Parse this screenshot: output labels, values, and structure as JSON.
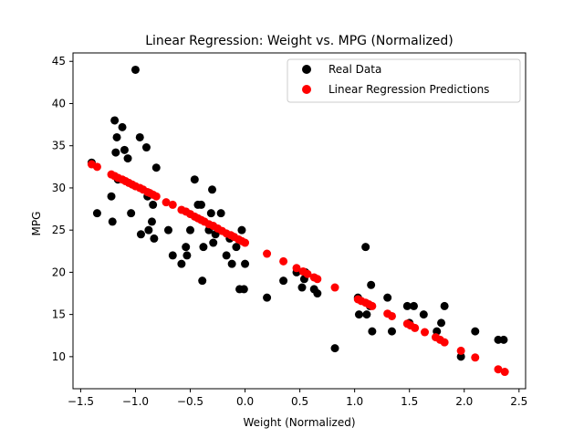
{
  "chart_data": {
    "type": "scatter",
    "title": "Linear Regression: Weight vs. MPG (Normalized)",
    "xlabel": "Weight (Normalized)",
    "ylabel": "MPG",
    "xlim": [
      -1.57,
      2.56
    ],
    "ylim": [
      6.2,
      46.0
    ],
    "x_ticks": [
      -1.5,
      -1.0,
      -0.5,
      0.0,
      0.5,
      1.0,
      1.5,
      2.0,
      2.5
    ],
    "x_tick_labels": [
      "−1.5",
      "−1.0",
      "−0.5",
      "0.0",
      "0.5",
      "1.0",
      "1.5",
      "2.0",
      "2.5"
    ],
    "y_ticks": [
      10,
      15,
      20,
      25,
      30,
      35,
      40,
      45
    ],
    "y_tick_labels": [
      "10",
      "15",
      "20",
      "25",
      "30",
      "35",
      "40",
      "45"
    ],
    "grid": false,
    "legend_position": "top-right",
    "series": [
      {
        "name": "Real Data",
        "color": "#000000",
        "points": [
          [
            -1.4,
            33.0
          ],
          [
            -1.35,
            27.0
          ],
          [
            -1.22,
            29.0
          ],
          [
            -1.21,
            26.0
          ],
          [
            -1.19,
            38.0
          ],
          [
            -1.18,
            34.2
          ],
          [
            -1.17,
            36.0
          ],
          [
            -1.16,
            31.0
          ],
          [
            -1.12,
            37.2
          ],
          [
            -1.1,
            34.5
          ],
          [
            -1.07,
            33.5
          ],
          [
            -1.04,
            27.0
          ],
          [
            -1.0,
            44.0
          ],
          [
            -0.96,
            36.0
          ],
          [
            -0.95,
            24.5
          ],
          [
            -0.9,
            34.8
          ],
          [
            -0.89,
            29.0
          ],
          [
            -0.88,
            25.0
          ],
          [
            -0.85,
            26.0
          ],
          [
            -0.84,
            28.0
          ],
          [
            -0.83,
            24.0
          ],
          [
            -0.81,
            32.4
          ],
          [
            -0.7,
            25.0
          ],
          [
            -0.66,
            22.0
          ],
          [
            -0.58,
            21.0
          ],
          [
            -0.54,
            23.0
          ],
          [
            -0.53,
            22.0
          ],
          [
            -0.5,
            25.0
          ],
          [
            -0.46,
            31.0
          ],
          [
            -0.43,
            28.0
          ],
          [
            -0.4,
            28.0
          ],
          [
            -0.39,
            19.0
          ],
          [
            -0.38,
            23.0
          ],
          [
            -0.33,
            25.0
          ],
          [
            -0.31,
            27.0
          ],
          [
            -0.3,
            29.8
          ],
          [
            -0.29,
            23.5
          ],
          [
            -0.27,
            24.5
          ],
          [
            -0.22,
            27.0
          ],
          [
            -0.17,
            22.0
          ],
          [
            -0.14,
            24.0
          ],
          [
            -0.12,
            21.0
          ],
          [
            -0.08,
            23.0
          ],
          [
            -0.05,
            18.0
          ],
          [
            -0.03,
            25.0
          ],
          [
            -0.01,
            18.0
          ],
          [
            0.0,
            21.0
          ],
          [
            0.2,
            17.0
          ],
          [
            0.35,
            19.0
          ],
          [
            0.47,
            20.0
          ],
          [
            0.52,
            18.2
          ],
          [
            0.54,
            19.2
          ],
          [
            0.55,
            20.0
          ],
          [
            0.63,
            18.0
          ],
          [
            0.66,
            17.5
          ],
          [
            0.82,
            11.0
          ],
          [
            1.03,
            17.0
          ],
          [
            1.04,
            15.0
          ],
          [
            1.1,
            23.0
          ],
          [
            1.11,
            15.0
          ],
          [
            1.14,
            16.0
          ],
          [
            1.15,
            18.5
          ],
          [
            1.16,
            13.0
          ],
          [
            1.3,
            17.0
          ],
          [
            1.34,
            13.0
          ],
          [
            1.48,
            16.0
          ],
          [
            1.5,
            14.0
          ],
          [
            1.54,
            16.0
          ],
          [
            1.63,
            15.0
          ],
          [
            1.75,
            13.0
          ],
          [
            1.79,
            14.0
          ],
          [
            1.82,
            16.0
          ],
          [
            1.97,
            10.0
          ],
          [
            2.1,
            13.0
          ],
          [
            2.31,
            12.0
          ],
          [
            2.36,
            12.0
          ]
        ]
      },
      {
        "name": "Linear Regression Predictions",
        "color": "#ff0000",
        "points": [
          [
            -1.4,
            32.8
          ],
          [
            -1.35,
            32.5
          ],
          [
            -1.22,
            31.6
          ],
          [
            -1.19,
            31.4
          ],
          [
            -1.16,
            31.2
          ],
          [
            -1.12,
            31.0
          ],
          [
            -1.09,
            30.8
          ],
          [
            -1.06,
            30.6
          ],
          [
            -1.03,
            30.4
          ],
          [
            -1.0,
            30.2
          ],
          [
            -0.96,
            30.0
          ],
          [
            -0.93,
            29.8
          ],
          [
            -0.89,
            29.5
          ],
          [
            -0.87,
            29.4
          ],
          [
            -0.84,
            29.2
          ],
          [
            -0.81,
            29.0
          ],
          [
            -0.72,
            28.3
          ],
          [
            -0.66,
            28.0
          ],
          [
            -0.58,
            27.4
          ],
          [
            -0.54,
            27.2
          ],
          [
            -0.5,
            26.9
          ],
          [
            -0.46,
            26.6
          ],
          [
            -0.43,
            26.4
          ],
          [
            -0.4,
            26.2
          ],
          [
            -0.37,
            26.0
          ],
          [
            -0.33,
            25.7
          ],
          [
            -0.29,
            25.5
          ],
          [
            -0.25,
            25.2
          ],
          [
            -0.21,
            24.9
          ],
          [
            -0.17,
            24.6
          ],
          [
            -0.13,
            24.4
          ],
          [
            -0.1,
            24.2
          ],
          [
            -0.06,
            23.9
          ],
          [
            -0.03,
            23.7
          ],
          [
            0.0,
            23.5
          ],
          [
            0.2,
            22.2
          ],
          [
            0.35,
            21.3
          ],
          [
            0.47,
            20.5
          ],
          [
            0.53,
            20.1
          ],
          [
            0.57,
            19.8
          ],
          [
            0.63,
            19.4
          ],
          [
            0.66,
            19.2
          ],
          [
            0.82,
            18.2
          ],
          [
            1.03,
            16.8
          ],
          [
            1.06,
            16.6
          ],
          [
            1.1,
            16.4
          ],
          [
            1.13,
            16.2
          ],
          [
            1.16,
            16.0
          ],
          [
            1.3,
            15.1
          ],
          [
            1.34,
            14.8
          ],
          [
            1.48,
            13.9
          ],
          [
            1.51,
            13.7
          ],
          [
            1.55,
            13.4
          ],
          [
            1.64,
            12.9
          ],
          [
            1.74,
            12.3
          ],
          [
            1.78,
            12.0
          ],
          [
            1.82,
            11.7
          ],
          [
            1.97,
            10.7
          ],
          [
            2.1,
            9.9
          ],
          [
            2.31,
            8.5
          ],
          [
            2.37,
            8.2
          ]
        ]
      }
    ]
  }
}
